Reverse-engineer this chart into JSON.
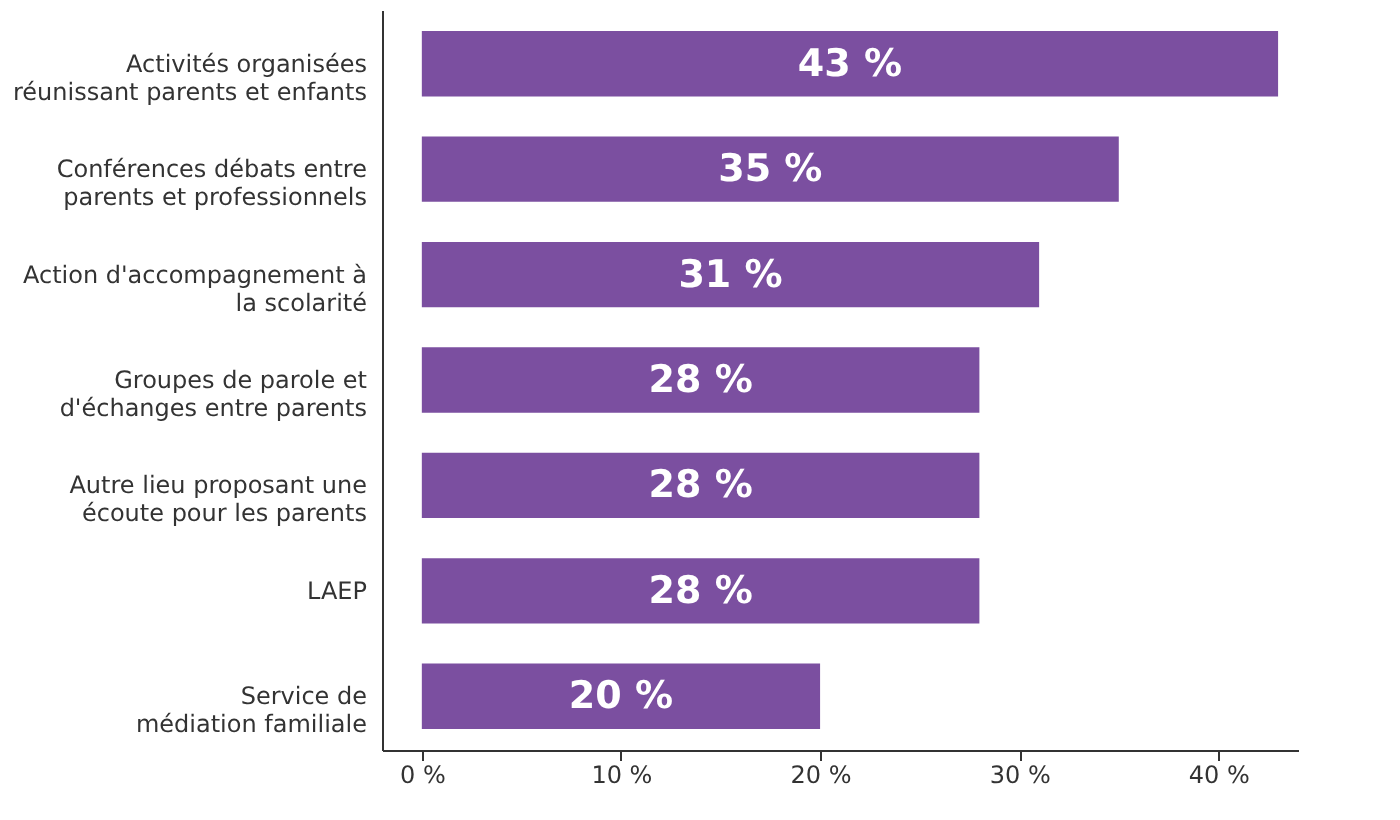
{
  "chart_data": {
    "type": "bar",
    "orientation": "horizontal",
    "categories": [
      "Activités organisées\nréunissant parents et enfants",
      "Conférences débats entre\nparents et professionnels",
      "Action d'accompagnement à\nla scolarité",
      "Groupes de parole et\nd'échanges entre parents",
      "Autre lieu proposant une\nécoute pour les parents",
      "LAEP",
      "Service de\nmédiation familiale"
    ],
    "values": [
      43,
      35,
      31,
      28,
      28,
      28,
      20
    ],
    "value_labels": [
      "43 %",
      "35 %",
      "31 %",
      "28 %",
      "28 %",
      "28 %",
      "20 %"
    ],
    "color": "#7b4fa0",
    "xlim": [
      -2,
      44
    ],
    "xticks": [
      {
        "value": 0,
        "label": "0 %"
      },
      {
        "value": 10,
        "label": "10 %"
      },
      {
        "value": 20,
        "label": "20 %"
      },
      {
        "value": 30,
        "label": "30 %"
      },
      {
        "value": 40,
        "label": "40 %"
      }
    ],
    "grid": false
  }
}
